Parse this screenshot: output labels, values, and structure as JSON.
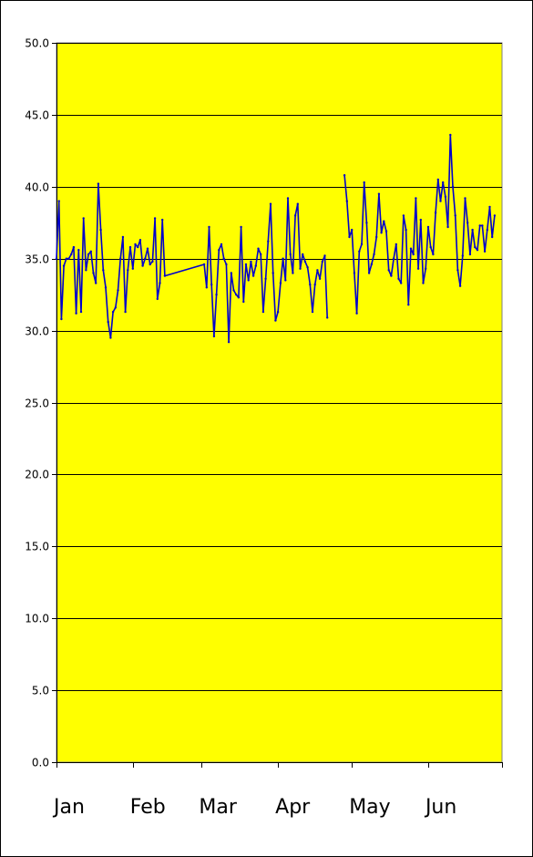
{
  "chart_data": {
    "type": "line",
    "title": "",
    "xlabel": "",
    "ylabel": "",
    "ylim": [
      0,
      50
    ],
    "y_ticks": [
      "0.0",
      "5.0",
      "10.0",
      "15.0",
      "20.0",
      "25.0",
      "30.0",
      "35.0",
      "40.0",
      "45.0",
      "50.0"
    ],
    "x_ticks": [
      "Jan",
      "Feb",
      "Mar",
      "Apr",
      "May",
      "Jun"
    ],
    "grid": true,
    "legend": "none",
    "colors": {
      "plot_background": "#ffff00",
      "line": "#0000cc",
      "gridline": "#000000"
    },
    "series": [
      {
        "points": [
          [
            "2014-01-01",
            35.0
          ],
          [
            "2014-01-02",
            39.0
          ],
          [
            "2014-01-03",
            30.8
          ],
          [
            "2014-01-04",
            34.5
          ],
          [
            "2014-01-05",
            35.0
          ],
          [
            "2014-01-06",
            35.0
          ],
          [
            "2014-01-07",
            35.3
          ],
          [
            "2014-01-08",
            35.8
          ],
          [
            "2014-01-09",
            31.2
          ],
          [
            "2014-01-10",
            35.6
          ],
          [
            "2014-01-11",
            31.3
          ],
          [
            "2014-01-12",
            37.8
          ],
          [
            "2014-01-13",
            34.2
          ],
          [
            "2014-01-14",
            35.3
          ],
          [
            "2014-01-15",
            35.5
          ],
          [
            "2014-01-16",
            34.0
          ],
          [
            "2014-01-17",
            33.3
          ],
          [
            "2014-01-18",
            40.2
          ],
          [
            "2014-01-19",
            37.0
          ],
          [
            "2014-01-20",
            34.2
          ],
          [
            "2014-01-21",
            33.0
          ],
          [
            "2014-01-22",
            30.6
          ],
          [
            "2014-01-23",
            29.5
          ],
          [
            "2014-01-24",
            31.3
          ],
          [
            "2014-01-25",
            31.6
          ],
          [
            "2014-01-26",
            32.8
          ],
          [
            "2014-01-27",
            35.0
          ],
          [
            "2014-01-28",
            36.5
          ],
          [
            "2014-01-29",
            31.3
          ],
          [
            "2014-01-30",
            34.2
          ],
          [
            "2014-01-31",
            35.8
          ],
          [
            "2014-02-01",
            34.3
          ],
          [
            "2014-02-02",
            36.0
          ],
          [
            "2014-02-03",
            35.8
          ],
          [
            "2014-02-04",
            36.3
          ],
          [
            "2014-02-05",
            34.5
          ],
          [
            "2014-02-06",
            35.0
          ],
          [
            "2014-02-07",
            35.7
          ],
          [
            "2014-02-08",
            34.6
          ],
          [
            "2014-02-09",
            34.8
          ],
          [
            "2014-02-10",
            37.8
          ],
          [
            "2014-02-11",
            32.2
          ],
          [
            "2014-02-12",
            33.3
          ],
          [
            "2014-02-13",
            37.7
          ],
          [
            "2014-02-14",
            33.8
          ],
          [
            "2014-03-02",
            34.6
          ],
          [
            "2014-03-03",
            33.0
          ],
          [
            "2014-03-04",
            37.2
          ],
          [
            "2014-03-05",
            33.2
          ],
          [
            "2014-03-06",
            29.6
          ],
          [
            "2014-03-07",
            32.5
          ],
          [
            "2014-03-08",
            35.6
          ],
          [
            "2014-03-09",
            36.0
          ],
          [
            "2014-03-10",
            35.0
          ],
          [
            "2014-03-11",
            34.6
          ],
          [
            "2014-03-12",
            29.2
          ],
          [
            "2014-03-13",
            34.0
          ],
          [
            "2014-03-14",
            32.8
          ],
          [
            "2014-03-15",
            32.5
          ],
          [
            "2014-03-16",
            32.3
          ],
          [
            "2014-03-17",
            37.2
          ],
          [
            "2014-03-18",
            32.0
          ],
          [
            "2014-03-19",
            34.6
          ],
          [
            "2014-03-20",
            33.5
          ],
          [
            "2014-03-21",
            34.8
          ],
          [
            "2014-03-22",
            33.8
          ],
          [
            "2014-03-23",
            34.5
          ],
          [
            "2014-03-24",
            35.7
          ],
          [
            "2014-03-25",
            35.3
          ],
          [
            "2014-03-26",
            31.3
          ],
          [
            "2014-03-27",
            33.6
          ],
          [
            "2014-03-28",
            36.2
          ],
          [
            "2014-03-29",
            38.8
          ],
          [
            "2014-03-30",
            34.0
          ],
          [
            "2014-03-31",
            30.7
          ],
          [
            "2014-04-01",
            31.3
          ],
          [
            "2014-04-02",
            33.3
          ],
          [
            "2014-04-03",
            35.0
          ],
          [
            "2014-04-04",
            33.5
          ],
          [
            "2014-04-05",
            39.2
          ],
          [
            "2014-04-06",
            35.3
          ],
          [
            "2014-04-07",
            34.0
          ],
          [
            "2014-04-08",
            38.0
          ],
          [
            "2014-04-09",
            38.8
          ],
          [
            "2014-04-10",
            34.3
          ],
          [
            "2014-04-11",
            35.3
          ],
          [
            "2014-04-12",
            34.8
          ],
          [
            "2014-04-13",
            34.4
          ],
          [
            "2014-04-14",
            33.2
          ],
          [
            "2014-04-15",
            31.3
          ],
          [
            "2014-04-16",
            33.2
          ],
          [
            "2014-04-17",
            34.2
          ],
          [
            "2014-04-18",
            33.6
          ],
          [
            "2014-04-19",
            34.8
          ],
          [
            "2014-04-20",
            35.2
          ],
          [
            "2014-04-21",
            30.9
          ]
        ]
      },
      {
        "points": [
          [
            "2014-04-28",
            40.8
          ],
          [
            "2014-04-29",
            39.0
          ],
          [
            "2014-04-30",
            36.5
          ],
          [
            "2014-05-01",
            37.0
          ],
          [
            "2014-05-02",
            34.0
          ],
          [
            "2014-05-03",
            31.2
          ],
          [
            "2014-05-04",
            35.5
          ],
          [
            "2014-05-05",
            36.0
          ],
          [
            "2014-05-06",
            40.3
          ],
          [
            "2014-05-07",
            37.5
          ],
          [
            "2014-05-08",
            34.0
          ],
          [
            "2014-05-09",
            34.6
          ],
          [
            "2014-05-10",
            35.3
          ],
          [
            "2014-05-11",
            36.5
          ],
          [
            "2014-05-12",
            39.5
          ],
          [
            "2014-05-13",
            36.8
          ],
          [
            "2014-05-14",
            37.6
          ],
          [
            "2014-05-15",
            36.9
          ],
          [
            "2014-05-16",
            34.2
          ],
          [
            "2014-05-17",
            33.8
          ],
          [
            "2014-05-18",
            35.0
          ],
          [
            "2014-05-19",
            36.0
          ],
          [
            "2014-05-20",
            33.6
          ],
          [
            "2014-05-21",
            33.3
          ],
          [
            "2014-05-22",
            38.0
          ],
          [
            "2014-05-23",
            37.0
          ],
          [
            "2014-05-24",
            31.8
          ],
          [
            "2014-05-25",
            35.7
          ],
          [
            "2014-05-26",
            35.3
          ],
          [
            "2014-05-27",
            39.2
          ],
          [
            "2014-05-28",
            34.3
          ],
          [
            "2014-05-29",
            37.7
          ],
          [
            "2014-05-30",
            33.3
          ],
          [
            "2014-05-31",
            34.3
          ],
          [
            "2014-06-01",
            37.2
          ],
          [
            "2014-06-02",
            35.8
          ],
          [
            "2014-06-03",
            35.3
          ],
          [
            "2014-06-04",
            38.2
          ],
          [
            "2014-06-05",
            40.5
          ],
          [
            "2014-06-06",
            39.0
          ],
          [
            "2014-06-07",
            40.3
          ],
          [
            "2014-06-08",
            39.3
          ],
          [
            "2014-06-09",
            37.2
          ],
          [
            "2014-06-10",
            43.6
          ],
          [
            "2014-06-11",
            40.0
          ],
          [
            "2014-06-12",
            38.0
          ],
          [
            "2014-06-13",
            34.2
          ],
          [
            "2014-06-14",
            33.1
          ],
          [
            "2014-06-15",
            35.2
          ],
          [
            "2014-06-16",
            39.2
          ],
          [
            "2014-06-17",
            37.5
          ],
          [
            "2014-06-18",
            35.3
          ],
          [
            "2014-06-19",
            37.0
          ],
          [
            "2014-06-20",
            35.8
          ],
          [
            "2014-06-21",
            35.6
          ],
          [
            "2014-06-22",
            37.3
          ],
          [
            "2014-06-23",
            37.3
          ],
          [
            "2014-06-24",
            35.5
          ],
          [
            "2014-06-25",
            37.0
          ],
          [
            "2014-06-26",
            38.6
          ],
          [
            "2014-06-27",
            36.5
          ],
          [
            "2014-06-28",
            38.0
          ]
        ]
      }
    ]
  }
}
